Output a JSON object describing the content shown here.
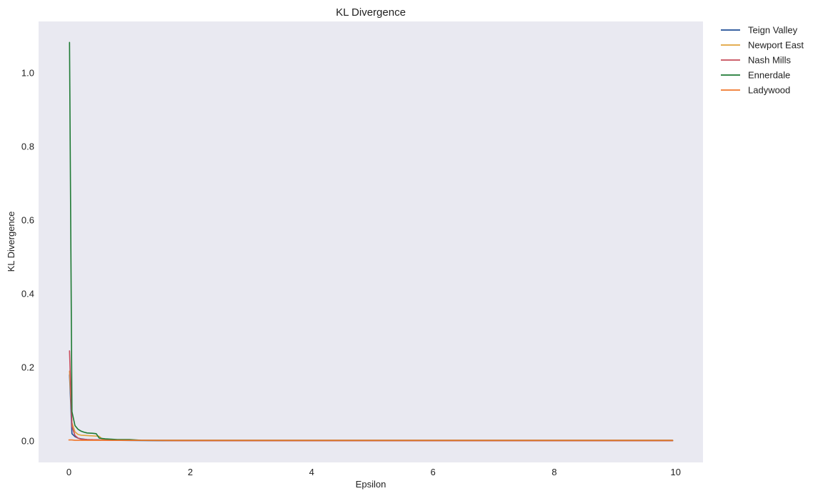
{
  "chart_data": {
    "type": "line",
    "title": "KL Divergence",
    "xlabel": "Epsilon",
    "ylabel": "KL Divergence",
    "xlim": [
      -0.5,
      10.45
    ],
    "ylim": [
      -0.058,
      1.14
    ],
    "xticks": [
      0,
      2,
      4,
      6,
      8,
      10
    ],
    "xtick_labels": [
      "0",
      "2",
      "4",
      "6",
      "8",
      "10"
    ],
    "yticks": [
      0.0,
      0.2,
      0.4,
      0.6,
      0.8,
      1.0
    ],
    "ytick_labels": [
      "0.0",
      "0.2",
      "0.4",
      "0.6",
      "0.8",
      "1.0"
    ],
    "grid": false,
    "legend_position": "outside-top-right",
    "plot_background": "#e9e9f1",
    "series": [
      {
        "name": "Teign Valley",
        "color": "#1f4e96",
        "x": [
          0.01,
          0.05,
          0.1,
          0.15,
          0.2,
          0.3,
          0.5,
          0.7,
          1.0,
          1.5,
          2.0,
          3.0,
          5.0,
          7.0,
          9.95
        ],
        "y": [
          0.18,
          0.02,
          0.012,
          0.008,
          0.006,
          0.004,
          0.003,
          0.002,
          0.0015,
          0.001,
          0.001,
          0.001,
          0.001,
          0.001,
          0.001
        ]
      },
      {
        "name": "Newport East",
        "color": "#e1a33c",
        "x": [
          0.01,
          0.05,
          0.1,
          0.15,
          0.2,
          0.3,
          0.4,
          0.5,
          0.55,
          0.7,
          1.0,
          1.5,
          2.0,
          3.0,
          5.0,
          7.0,
          9.95
        ],
        "y": [
          0.19,
          0.05,
          0.025,
          0.018,
          0.016,
          0.015,
          0.014,
          0.013,
          0.005,
          0.003,
          0.002,
          0.0015,
          0.001,
          0.001,
          0.001,
          0.001,
          0.001
        ]
      },
      {
        "name": "Nash Mills",
        "color": "#c64b5a",
        "x": [
          0.01,
          0.05,
          0.1,
          0.15,
          0.2,
          0.3,
          0.5,
          0.7,
          1.0,
          1.5,
          2.0,
          3.0,
          5.0,
          7.0,
          9.95
        ],
        "y": [
          0.245,
          0.04,
          0.015,
          0.008,
          0.005,
          0.004,
          0.003,
          0.002,
          0.002,
          0.0015,
          0.001,
          0.001,
          0.001,
          0.001,
          0.001
        ]
      },
      {
        "name": "Ennerdale",
        "color": "#1e7a34",
        "x": [
          0.01,
          0.05,
          0.1,
          0.15,
          0.2,
          0.25,
          0.3,
          0.4,
          0.45,
          0.5,
          0.6,
          0.7,
          0.8,
          1.0,
          1.1,
          1.2,
          1.5,
          2.0,
          3.0,
          5.0,
          7.0,
          9.95
        ],
        "y": [
          1.083,
          0.08,
          0.042,
          0.032,
          0.027,
          0.024,
          0.022,
          0.021,
          0.02,
          0.008,
          0.006,
          0.005,
          0.004,
          0.004,
          0.003,
          0.002,
          0.002,
          0.002,
          0.002,
          0.002,
          0.002,
          0.002
        ]
      },
      {
        "name": "Ladywood",
        "color": "#f0772b",
        "x": [
          0.0,
          0.05,
          0.1,
          0.2,
          0.5,
          1.0,
          2.0,
          4.0,
          6.0,
          8.0,
          9.95
        ],
        "y": [
          0.003,
          0.003,
          0.002,
          0.002,
          0.002,
          0.002,
          0.002,
          0.002,
          0.002,
          0.002,
          0.002
        ]
      }
    ]
  }
}
